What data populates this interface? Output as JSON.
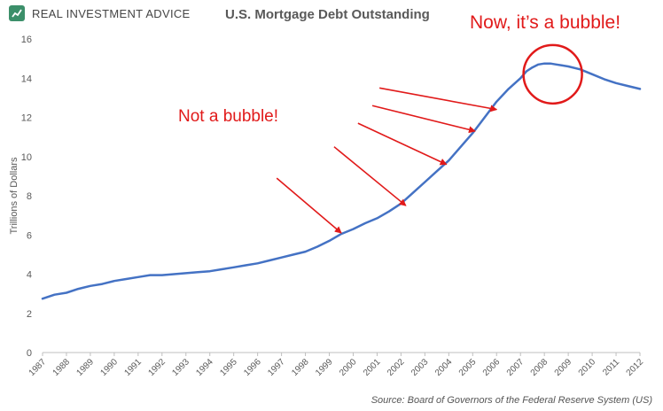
{
  "brand": {
    "name": "REAL INVESTMENT ADVICE",
    "logo_icon": "shield-chart-icon",
    "logo_color": "#3c8f6a"
  },
  "chart_data": {
    "type": "line",
    "title": "U.S. Mortgage Debt Outstanding",
    "ylabel": "Trillions of Dollars",
    "xlabel": "",
    "ylim": [
      0,
      16
    ],
    "yticks": [
      0,
      2,
      4,
      6,
      8,
      10,
      12,
      14,
      16
    ],
    "xlim": [
      1987,
      2012
    ],
    "xticks": [
      "1987",
      "1988",
      "1989",
      "1990",
      "1991",
      "1992",
      "1993",
      "1994",
      "1995",
      "1996",
      "1997",
      "1998",
      "1999",
      "2000",
      "2001",
      "2002",
      "2003",
      "2004",
      "2005",
      "2006",
      "2007",
      "2008",
      "2009",
      "2010",
      "2011",
      "2012"
    ],
    "grid": false,
    "line_color": "#4472c4",
    "series": [
      {
        "x": [
          1987,
          1987.5,
          1988,
          1988.5,
          1989,
          1989.5,
          1990,
          1990.5,
          1991,
          1991.5,
          1992,
          1992.5,
          1993,
          1993.5,
          1994,
          1994.5,
          1995,
          1995.5,
          1996,
          1996.5,
          1997,
          1997.5,
          1998,
          1998.5,
          1999,
          1999.5,
          2000,
          2000.5,
          2001,
          2001.5,
          2002,
          2002.5,
          2003,
          2003.5,
          2004,
          2004.5,
          2005,
          2005.5,
          2006,
          2006.5,
          2007,
          2007.25,
          2007.5,
          2007.75,
          2008,
          2008.25,
          2008.5,
          2008.75,
          2009,
          2009.5,
          2010,
          2010.5,
          2011,
          2011.5,
          2012
        ],
        "values": [
          2.75,
          2.95,
          3.05,
          3.25,
          3.4,
          3.5,
          3.65,
          3.75,
          3.85,
          3.95,
          3.95,
          4.0,
          4.05,
          4.1,
          4.15,
          4.25,
          4.35,
          4.45,
          4.55,
          4.7,
          4.85,
          5.0,
          5.15,
          5.4,
          5.7,
          6.05,
          6.3,
          6.6,
          6.85,
          7.2,
          7.6,
          8.15,
          8.7,
          9.25,
          9.8,
          10.5,
          11.2,
          12.0,
          12.8,
          13.45,
          14.0,
          14.35,
          14.55,
          14.7,
          14.75,
          14.75,
          14.7,
          14.65,
          14.6,
          14.45,
          14.2,
          13.95,
          13.75,
          13.6,
          13.45
        ]
      }
    ],
    "annotations": [
      {
        "text": "Now, it’s a bubble!",
        "color": "#e11a1a",
        "circle_center": [
          2008.35,
          14.2
        ]
      },
      {
        "text": "Not a bubble!",
        "color": "#e11a1a",
        "arrows": [
          {
            "from": [
              1996.8,
              8.9
            ],
            "to": [
              1999.5,
              6.1
            ]
          },
          {
            "from": [
              1999.2,
              10.5
            ],
            "to": [
              2002.2,
              7.5
            ]
          },
          {
            "from": [
              2000.2,
              11.7
            ],
            "to": [
              2003.9,
              9.6
            ]
          },
          {
            "from": [
              2000.8,
              12.6
            ],
            "to": [
              2005.1,
              11.3
            ]
          },
          {
            "from": [
              2001.1,
              13.5
            ],
            "to": [
              2006.0,
              12.4
            ]
          }
        ]
      }
    ],
    "source": "Source: Board of Governors of the Federal Reserve System (US)"
  }
}
